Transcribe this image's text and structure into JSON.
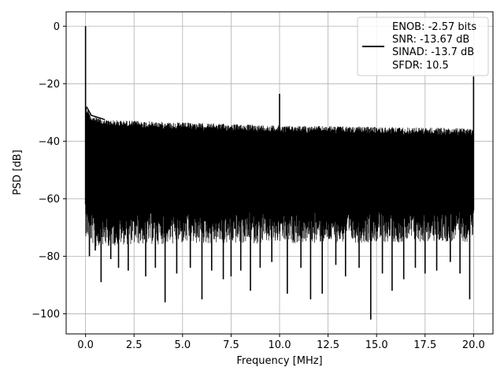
{
  "chart_data": {
    "type": "line",
    "title": "",
    "xlabel": "Frequency [MHz]",
    "ylabel": "PSD [dB]",
    "xlim": [
      -1.0,
      21.0
    ],
    "ylim": [
      -107,
      5
    ],
    "grid": true,
    "legend_position": "top-right",
    "line_color": "#000000",
    "x_ticks": [
      0.0,
      2.5,
      5.0,
      7.5,
      10.0,
      12.5,
      15.0,
      17.5,
      20.0
    ],
    "x_tick_labels": [
      "0.0",
      "2.5",
      "5.0",
      "7.5",
      "10.0",
      "12.5",
      "15.0",
      "17.5",
      "20.0"
    ],
    "y_ticks": [
      0,
      -20,
      -40,
      -60,
      -80,
      -100
    ],
    "y_tick_labels": [
      "0",
      "−20",
      "−40",
      "−60",
      "−80",
      "−100"
    ],
    "legend_entries": [
      "ENOB: -2.57 bits",
      "SNR: -13.67 dB",
      "SINAD: -13.7 dB",
      "SFDR: 10.5"
    ],
    "series": [
      {
        "noise_floor": {
          "x_range": [
            0.0,
            20.0
          ],
          "upper_envelope": [
            {
              "x": 0.05,
              "y": -28
            },
            {
              "x": 0.3,
              "y": -31
            },
            {
              "x": 1.0,
              "y": -32.5
            },
            {
              "x": 5.0,
              "y": -33.5
            },
            {
              "x": 10.0,
              "y": -34.5
            },
            {
              "x": 15.0,
              "y": -35
            },
            {
              "x": 20.0,
              "y": -35.5
            }
          ],
          "lower_envelope": [
            {
              "x": 0.0,
              "y": -62
            },
            {
              "x": 0.5,
              "y": -66
            },
            {
              "x": 2.0,
              "y": -65
            },
            {
              "x": 20.0,
              "y": -64
            }
          ]
        },
        "peaks": [
          {
            "x": 0.0,
            "y": 0
          },
          {
            "x": 10.0,
            "y": -23.5
          },
          {
            "x": 20.0,
            "y": -17.5
          }
        ],
        "dips": [
          {
            "x": 0.2,
            "y": -80
          },
          {
            "x": 0.5,
            "y": -78
          },
          {
            "x": 0.8,
            "y": -89
          },
          {
            "x": 1.3,
            "y": -81
          },
          {
            "x": 1.7,
            "y": -84
          },
          {
            "x": 2.2,
            "y": -85
          },
          {
            "x": 3.1,
            "y": -87
          },
          {
            "x": 3.6,
            "y": -84
          },
          {
            "x": 4.1,
            "y": -96
          },
          {
            "x": 4.7,
            "y": -86
          },
          {
            "x": 5.4,
            "y": -84
          },
          {
            "x": 6.0,
            "y": -95
          },
          {
            "x": 6.5,
            "y": -85
          },
          {
            "x": 7.1,
            "y": -88
          },
          {
            "x": 7.5,
            "y": -87
          },
          {
            "x": 8.0,
            "y": -85
          },
          {
            "x": 8.5,
            "y": -92
          },
          {
            "x": 9.0,
            "y": -84
          },
          {
            "x": 9.6,
            "y": -82
          },
          {
            "x": 10.4,
            "y": -93
          },
          {
            "x": 11.1,
            "y": -84
          },
          {
            "x": 11.6,
            "y": -95
          },
          {
            "x": 12.2,
            "y": -93
          },
          {
            "x": 12.9,
            "y": -83
          },
          {
            "x": 13.4,
            "y": -87
          },
          {
            "x": 14.1,
            "y": -84
          },
          {
            "x": 14.7,
            "y": -102
          },
          {
            "x": 15.3,
            "y": -86
          },
          {
            "x": 15.8,
            "y": -92
          },
          {
            "x": 16.4,
            "y": -88
          },
          {
            "x": 17.0,
            "y": -84
          },
          {
            "x": 17.5,
            "y": -86
          },
          {
            "x": 18.1,
            "y": -85
          },
          {
            "x": 18.8,
            "y": -82
          },
          {
            "x": 19.3,
            "y": -86
          },
          {
            "x": 19.8,
            "y": -95
          }
        ]
      }
    ]
  }
}
